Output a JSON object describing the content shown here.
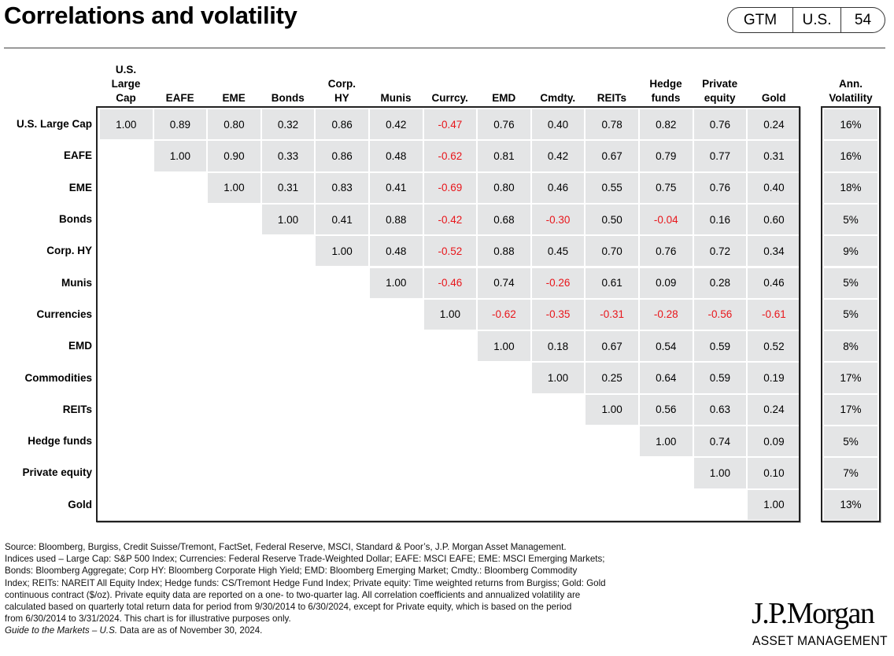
{
  "header": {
    "title": "Correlations and volatility",
    "badge": [
      "GTM",
      "U.S.",
      "54"
    ]
  },
  "chart_data": {
    "type": "table",
    "title": "Correlations and volatility",
    "columns": [
      "U.S.\nLarge\nCap",
      "EAFE",
      "EME",
      "Bonds",
      "Corp.\nHY",
      "Munis",
      "Currcy.",
      "EMD",
      "Cmdty.",
      "REITs",
      "Hedge\nfunds",
      "Private\nequity",
      "Gold"
    ],
    "rows": [
      "U.S. Large Cap",
      "EAFE",
      "EME",
      "Bonds",
      "Corp. HY",
      "Munis",
      "Currencies",
      "EMD",
      "Commodities",
      "REITs",
      "Hedge funds",
      "Private equity",
      "Gold"
    ],
    "values": [
      [
        "1.00",
        "0.89",
        "0.80",
        "0.32",
        "0.86",
        "0.42",
        "-0.47",
        "0.76",
        "0.40",
        "0.78",
        "0.82",
        "0.76",
        "0.24"
      ],
      [
        "1.00",
        "0.90",
        "0.33",
        "0.86",
        "0.48",
        "-0.62",
        "0.81",
        "0.42",
        "0.67",
        "0.79",
        "0.77",
        "0.31"
      ],
      [
        "1.00",
        "0.31",
        "0.83",
        "0.41",
        "-0.69",
        "0.80",
        "0.46",
        "0.55",
        "0.75",
        "0.76",
        "0.40"
      ],
      [
        "1.00",
        "0.41",
        "0.88",
        "-0.42",
        "0.68",
        "-0.30",
        "0.50",
        "-0.04",
        "0.16",
        "0.60"
      ],
      [
        "1.00",
        "0.48",
        "-0.52",
        "0.88",
        "0.45",
        "0.70",
        "0.76",
        "0.72",
        "0.34"
      ],
      [
        "1.00",
        "-0.46",
        "0.74",
        "-0.26",
        "0.61",
        "0.09",
        "0.28",
        "0.46"
      ],
      [
        "1.00",
        "-0.62",
        "-0.35",
        "-0.31",
        "-0.28",
        "-0.56",
        "-0.61"
      ],
      [
        "1.00",
        "0.18",
        "0.67",
        "0.54",
        "0.59",
        "0.52"
      ],
      [
        "1.00",
        "0.25",
        "0.64",
        "0.59",
        "0.19"
      ],
      [
        "1.00",
        "0.56",
        "0.63",
        "0.24"
      ],
      [
        "1.00",
        "0.74",
        "0.09"
      ],
      [
        "1.00",
        "0.10"
      ],
      [
        "1.00"
      ]
    ],
    "volatility_header": "Ann.\nVolatility",
    "volatility": [
      "16%",
      "16%",
      "18%",
      "5%",
      "9%",
      "5%",
      "5%",
      "8%",
      "17%",
      "17%",
      "5%",
      "7%",
      "13%"
    ],
    "negative_color": "#e8161b",
    "cell_color": "#e4e5e6"
  },
  "footnotes": {
    "lines": [
      "Source: Bloomberg, Burgiss, Credit Suisse/Tremont, FactSet, Federal Reserve, MSCI, Standard & Poor’s, J.P. Morgan Asset Management.",
      "Indices used – Large Cap: S&P 500 Index; Currencies: Federal Reserve Trade-Weighted Dollar; EAFE: MSCI EAFE; EME: MSCI Emerging Markets;",
      "Bonds: Bloomberg Aggregate; Corp HY: Bloomberg Corporate High Yield; EMD: Bloomberg Emerging Market; Cmdty.: Bloomberg Commodity",
      "Index; REITs: NAREIT All Equity Index; Hedge funds: CS/Tremont Hedge Fund Index; Private equity: Time weighted returns from Burgiss; Gold: Gold",
      "continuous contract ($/oz). Private equity data are reported on a one- to two-quarter lag. All correlation coefficients and annualized volatility are",
      "calculated based on quarterly total return data for period from 9/30/2014 to 6/30/2024, except for Private equity, which is based on the period",
      "from 6/30/2014 to 3/31/2024. This chart is for illustrative purposes only."
    ],
    "guide_italic": "Guide to the Markets – U.S.",
    "guide_rest": " Data are as of November 30, 2024."
  },
  "logo": {
    "name": "J.P.Morgan",
    "sub": "ASSET MANAGEMENT"
  }
}
